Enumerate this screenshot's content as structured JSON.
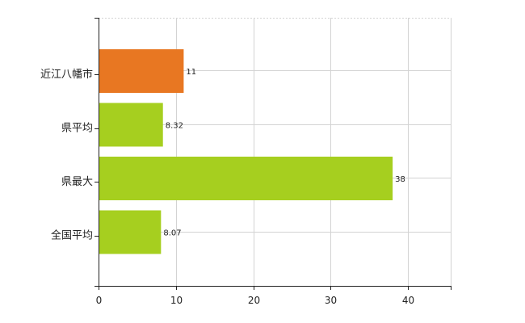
{
  "chart_data": {
    "type": "bar",
    "orientation": "horizontal",
    "categories": [
      "近江八幡市",
      "県平均",
      "県最大",
      "全国平均"
    ],
    "values": [
      11,
      8.32,
      38,
      8.07
    ],
    "value_labels": [
      "11",
      "8.32",
      "38",
      "8.07"
    ],
    "bar_colors": [
      "#e87722",
      "#a6cf1f",
      "#a6cf1f",
      "#a6cf1f"
    ],
    "xlim": [
      0,
      45.5
    ],
    "xticks": [
      0,
      10,
      20,
      30,
      40
    ],
    "xtick_labels": [
      "0",
      "10",
      "20",
      "30",
      "40"
    ],
    "grid": true,
    "legend": false
  }
}
